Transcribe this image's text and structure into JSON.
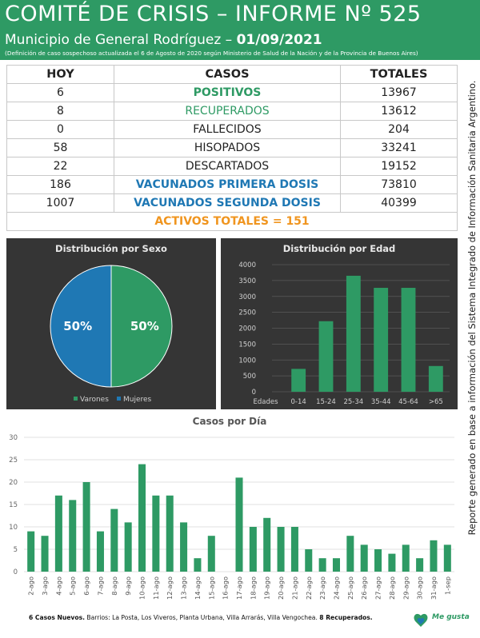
{
  "header": {
    "title": "COMITÉ DE CRISIS – INFORME Nº 525",
    "subtitle_prefix": "Municipio de General Rodríguez – ",
    "date": "01/09/2021",
    "note": "(Definición de caso sospechoso actualizada el 6 de Agosto de 2020 según Ministerio de Salud de la Nación y de la Provincia de Buenos Aires)"
  },
  "table": {
    "headers": [
      "HOY",
      "CASOS",
      "TOTALES"
    ],
    "rows": [
      {
        "hoy": "6",
        "caso": "POSITIVOS",
        "total": "13967"
      },
      {
        "hoy": "8",
        "caso": "RECUPERADOS",
        "total": "13612"
      },
      {
        "hoy": "0",
        "caso": "FALLECIDOS",
        "total": "204"
      },
      {
        "hoy": "58",
        "caso": "HISOPADOS",
        "total": "33241"
      },
      {
        "hoy": "22",
        "caso": "DESCARTADOS",
        "total": "19152"
      },
      {
        "hoy": "186",
        "caso": "VACUNADOS PRIMERA DOSIS",
        "total": "73810"
      },
      {
        "hoy": "1007",
        "caso": "VACUNADOS SEGUNDA DOSIS",
        "total": "40399"
      }
    ],
    "footer_row": "ACTIVOS TOTALES = 151"
  },
  "side_note": "Reporte generado en base a información del Sistema Integrado de Información Sanitaria Argentino.",
  "colors": {
    "green": "#2e9a64",
    "blue": "#1f78b4",
    "orange": "#f0951f",
    "panel": "#353535"
  },
  "chart_data": [
    {
      "type": "pie",
      "title": "Distribución  por Sexo",
      "slices": [
        {
          "name": "Varones",
          "value": 50,
          "label": "50%",
          "color": "#2e9a64"
        },
        {
          "name": "Mujeres",
          "value": 50,
          "label": "50%",
          "color": "#1f78b4"
        }
      ],
      "legend": "bottom"
    },
    {
      "type": "bar",
      "title": "Distribución  por Edad",
      "xlabel": "Edades",
      "categories": [
        "0-14",
        "15-24",
        "25-34",
        "35-44",
        "45-64",
        ">65"
      ],
      "values": [
        720,
        2220,
        3650,
        3270,
        3270,
        810
      ],
      "ylim": [
        0,
        4000
      ],
      "yticks": [
        "0",
        "500",
        "1000",
        "1500",
        "2000",
        "2500",
        "3000",
        "3500",
        "4000"
      ],
      "grid": true
    },
    {
      "type": "bar",
      "title": "Casos por Día",
      "categories": [
        "2-ago",
        "3-ago",
        "4-ago",
        "5-ago",
        "6-ago",
        "7-ago",
        "8-ago",
        "9-ago",
        "10-ago",
        "11-ago",
        "12-ago",
        "13-ago",
        "14-ago",
        "15-ago",
        "16-ago",
        "17-ago",
        "18-ago",
        "19-ago",
        "20-ago",
        "21-ago",
        "22-ago",
        "23-ago",
        "24-ago",
        "25-ago",
        "26-ago",
        "27-ago",
        "28-ago",
        "29-ago",
        "30-ago",
        "31-ago",
        "1-sep"
      ],
      "values": [
        9,
        8,
        17,
        16,
        20,
        9,
        14,
        11,
        24,
        17,
        17,
        11,
        3,
        8,
        0,
        21,
        10,
        12,
        10,
        10,
        5,
        3,
        3,
        8,
        6,
        5,
        4,
        6,
        3,
        7,
        6
      ],
      "ylim": [
        0,
        30
      ],
      "yticks": [
        "0",
        "5",
        "10",
        "15",
        "20",
        "25",
        "30"
      ],
      "grid": true
    }
  ],
  "footer": {
    "bold": "6 Casos Nuevos.",
    "text": " Barrios: La Posta, Los Viveros, Planta Urbana, Villa Arrarás, Villa Vengochea. ",
    "bold2": "8 Recuperados."
  },
  "logo": {
    "text": "Me gusta"
  }
}
